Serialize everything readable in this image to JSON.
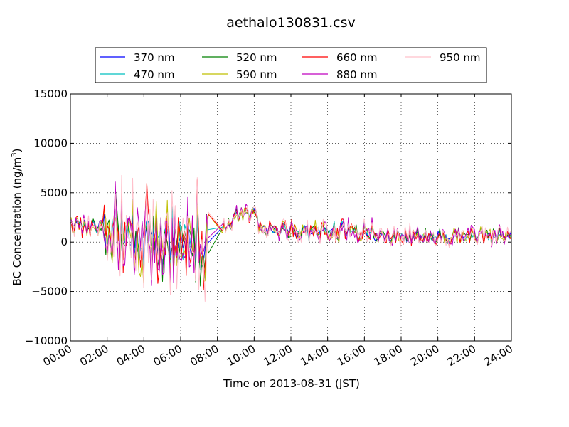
{
  "chart_data": {
    "type": "line",
    "title": "aethalo130831.csv",
    "xlabel": "Time on 2013-08-31 (JST)",
    "ylabel_main": "BC Concentration (ng/m",
    "ylabel_sup": "3",
    "ylabel_close": ")",
    "xlim": [
      0,
      24
    ],
    "ylim": [
      -10000,
      15000
    ],
    "grid": true,
    "legend_position": "top",
    "x_ticks": [
      0,
      2,
      4,
      6,
      8,
      10,
      12,
      14,
      16,
      18,
      20,
      22,
      24
    ],
    "x_tick_labels": [
      "00:00",
      "02:00",
      "04:00",
      "06:00",
      "08:00",
      "10:00",
      "12:00",
      "14:00",
      "16:00",
      "18:00",
      "20:00",
      "22:00",
      "24:00"
    ],
    "y_ticks": [
      -10000,
      -5000,
      0,
      5000,
      10000,
      15000
    ],
    "y_tick_labels": [
      "−10000",
      "−5000",
      "0",
      "5000",
      "10000",
      "15000"
    ],
    "series": [
      {
        "name": "370 nm",
        "color": "#0000ff"
      },
      {
        "name": "470 nm",
        "color": "#00bfbf"
      },
      {
        "name": "520 nm",
        "color": "#008000"
      },
      {
        "name": "590 nm",
        "color": "#bfbf00"
      },
      {
        "name": "660 nm",
        "color": "#ff0000"
      },
      {
        "name": "880 nm",
        "color": "#bf00bf"
      },
      {
        "name": "950 nm",
        "color": "#ffc0cb"
      }
    ],
    "gap_hours": [
      7.5,
      8.2
    ]
  }
}
